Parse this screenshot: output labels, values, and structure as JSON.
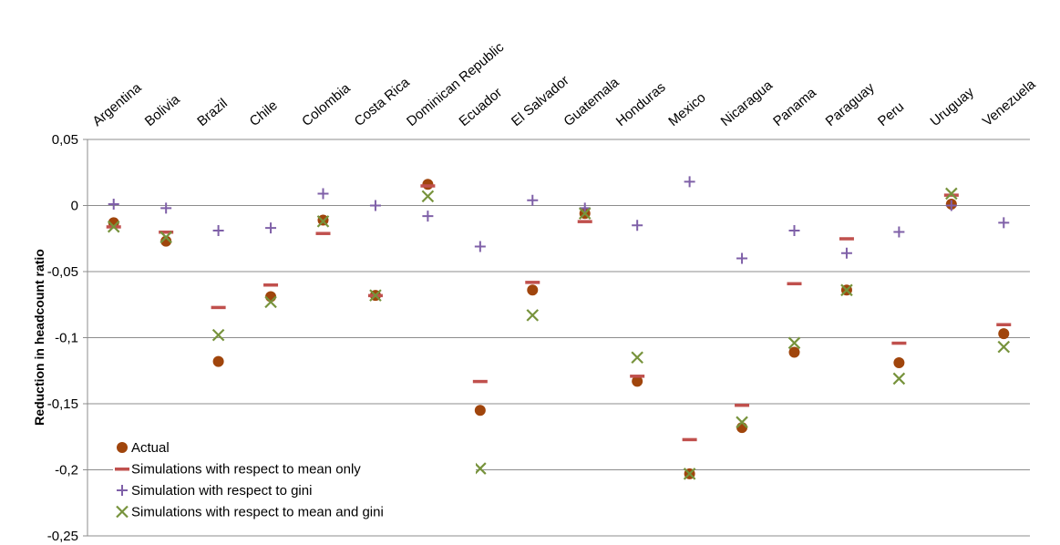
{
  "chart_data": {
    "type": "scatter",
    "ylabel": "Reduction in headcount ratio",
    "xlabel": "",
    "ylim": [
      -0.25,
      0.05
    ],
    "ytick_step": 0.05,
    "y_tick_labels": [
      "0,05",
      "0",
      "-0,05",
      "-0,1",
      "-0,15",
      "-0,2",
      "-0,25"
    ],
    "grid": true,
    "legend_position": "bottom-left",
    "categories": [
      "Argentina",
      "Bolivia",
      "Brazil",
      "Chile",
      "Colombia",
      "Costa Rica",
      "Dominican Republic",
      "Ecuador",
      "El Salvador",
      "Guatemala",
      "Honduras",
      "Mexico",
      "Nicaragua",
      "Panama",
      "Paraguay",
      "Peru",
      "Uruguay",
      "Venezuela"
    ],
    "series": [
      {
        "name": "Actual",
        "marker": "circle",
        "color": "#a0450c",
        "values": [
          -0.013,
          -0.027,
          -0.118,
          -0.069,
          -0.011,
          -0.068,
          0.016,
          -0.155,
          -0.064,
          -0.006,
          -0.133,
          -0.203,
          -0.168,
          -0.111,
          -0.064,
          -0.119,
          0.001,
          -0.097
        ]
      },
      {
        "name": "Simulations with respect to mean only",
        "marker": "dash",
        "color": "#c0504d",
        "values": [
          -0.016,
          -0.02,
          -0.077,
          -0.06,
          -0.021,
          -0.068,
          0.015,
          -0.133,
          -0.058,
          -0.012,
          -0.129,
          -0.177,
          -0.151,
          -0.059,
          -0.025,
          -0.104,
          0.008,
          -0.09
        ]
      },
      {
        "name": "Simulation with respect to gini",
        "marker": "plus",
        "color": "#7f60a8",
        "values": [
          0.001,
          -0.002,
          -0.019,
          -0.017,
          0.009,
          0.0,
          -0.008,
          -0.031,
          0.004,
          -0.002,
          -0.015,
          0.018,
          -0.04,
          -0.019,
          -0.036,
          -0.02,
          0.0,
          -0.013
        ]
      },
      {
        "name": "Simulations with respect to mean and gini",
        "marker": "x",
        "color": "#77933c",
        "values": [
          -0.016,
          -0.024,
          -0.098,
          -0.073,
          -0.012,
          -0.068,
          0.007,
          -0.199,
          -0.083,
          -0.006,
          -0.115,
          -0.203,
          -0.164,
          -0.104,
          -0.064,
          -0.131,
          0.009,
          -0.107
        ]
      }
    ]
  }
}
